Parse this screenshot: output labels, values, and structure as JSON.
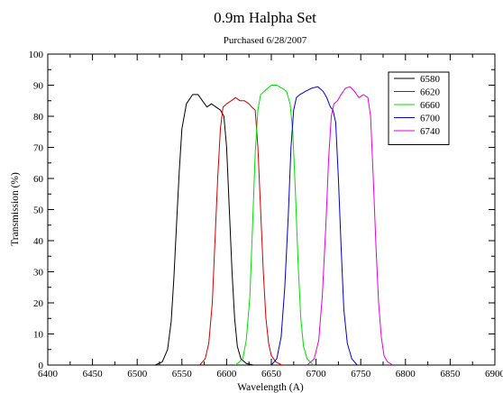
{
  "chart_data": {
    "type": "line",
    "title": "0.9m Halpha Set",
    "subtitle": "Purchased 6/28/2007",
    "xlabel": "Wavelength (A)",
    "ylabel": "Transmission (%)",
    "xlim": [
      6400,
      6900
    ],
    "ylim": [
      0,
      100
    ],
    "xticks": [
      "6400",
      "6450",
      "6500",
      "6550",
      "6600",
      "6650",
      "6700",
      "6750",
      "6800",
      "6850",
      "6900"
    ],
    "yticks": [
      "0",
      "10",
      "20",
      "30",
      "40",
      "50",
      "60",
      "70",
      "80",
      "90",
      "100"
    ],
    "grid": false,
    "legend": "top-right",
    "series": [
      {
        "name": "6580",
        "color": "#000000",
        "x": [
          6520,
          6528,
          6534,
          6538,
          6541,
          6544,
          6547,
          6550,
          6555,
          6562,
          6568,
          6573,
          6578,
          6583,
          6588,
          6593,
          6597,
          6600,
          6603,
          6606,
          6609,
          6612,
          6616,
          6622,
          6630
        ],
        "y": [
          0,
          1,
          5,
          14,
          28,
          45,
          62,
          76,
          84,
          87,
          87,
          85,
          83,
          84,
          83,
          82,
          80,
          70,
          50,
          30,
          15,
          6,
          2,
          0.5,
          0
        ]
      },
      {
        "name": "6620",
        "color": "#d00000",
        "x": [
          6570,
          6576,
          6580,
          6584,
          6587,
          6590,
          6593,
          6596,
          6600,
          6605,
          6610,
          6615,
          6620,
          6625,
          6628,
          6632,
          6635,
          6638,
          6641,
          6644,
          6647,
          6650,
          6655,
          6662
        ],
        "y": [
          0,
          2,
          7,
          20,
          40,
          60,
          76,
          83,
          84,
          85,
          86,
          85,
          85,
          84,
          83,
          82,
          70,
          50,
          30,
          15,
          7,
          3,
          1,
          0
        ]
      },
      {
        "name": "6660",
        "color": "#00dd00",
        "x": [
          6610,
          6618,
          6622,
          6626,
          6629,
          6632,
          6635,
          6638,
          6642,
          6646,
          6650,
          6656,
          6662,
          6667,
          6671,
          6674,
          6677,
          6680,
          6683,
          6686,
          6690,
          6697
        ],
        "y": [
          0,
          2,
          8,
          22,
          45,
          68,
          82,
          87,
          88,
          89,
          90,
          90,
          89,
          88,
          84,
          75,
          55,
          32,
          15,
          6,
          2,
          0
        ]
      },
      {
        "name": "6700",
        "color": "#0000cc",
        "x": [
          6650,
          6656,
          6661,
          6665,
          6669,
          6672,
          6675,
          6678,
          6682,
          6688,
          6695,
          6702,
          6708,
          6712,
          6716,
          6719,
          6722,
          6725,
          6728,
          6731,
          6735,
          6740,
          6746
        ],
        "y": [
          0,
          2,
          9,
          25,
          48,
          70,
          82,
          86,
          87,
          88,
          89,
          89.5,
          88,
          86,
          83,
          82,
          78,
          60,
          38,
          18,
          7,
          2,
          0
        ]
      },
      {
        "name": "6740",
        "color": "#e000e0",
        "x": [
          6690,
          6698,
          6703,
          6707,
          6711,
          6714,
          6717,
          6720,
          6724,
          6728,
          6733,
          6738,
          6743,
          6748,
          6753,
          6758,
          6761,
          6764,
          6767,
          6770,
          6773,
          6776,
          6780,
          6786
        ],
        "y": [
          0,
          2,
          8,
          22,
          45,
          66,
          80,
          84,
          85,
          87,
          89,
          89.5,
          88,
          86,
          87,
          86,
          80,
          60,
          38,
          20,
          9,
          3,
          1,
          0
        ]
      }
    ]
  }
}
